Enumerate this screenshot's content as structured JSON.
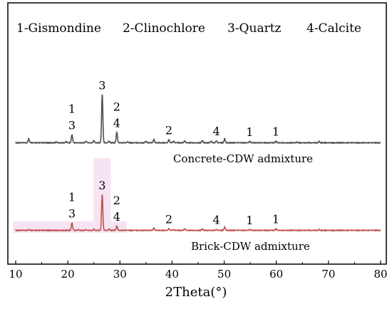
{
  "chart_data": {
    "type": "line",
    "xlabel": "2Theta(°)",
    "xlim": [
      10,
      80
    ],
    "x_ticks": [
      "10",
      "20",
      "30",
      "40",
      "50",
      "60",
      "70",
      "80"
    ],
    "legend_items": [
      "1-Gismondine",
      "2-Clinochlore",
      "3-Quartz",
      "4-Calcite"
    ],
    "series": [
      {
        "name": "Concrete-CDW admixture",
        "color": "#4d4d4d",
        "peaks": [
          {
            "x": 12.5,
            "h": 0.08
          },
          {
            "x": 17.8,
            "h": 0.015
          },
          {
            "x": 19.7,
            "h": 0.02
          },
          {
            "x": 20.8,
            "h": 0.15
          },
          {
            "x": 23.5,
            "h": 0.03
          },
          {
            "x": 25.0,
            "h": 0.04
          },
          {
            "x": 26.6,
            "h": 0.89
          },
          {
            "x": 27.9,
            "h": 0.03
          },
          {
            "x": 29.4,
            "h": 0.19
          },
          {
            "x": 31.5,
            "h": 0.025
          },
          {
            "x": 35.0,
            "h": 0.03
          },
          {
            "x": 36.5,
            "h": 0.06
          },
          {
            "x": 39.4,
            "h": 0.06
          },
          {
            "x": 40.3,
            "h": 0.03
          },
          {
            "x": 42.4,
            "h": 0.035
          },
          {
            "x": 45.8,
            "h": 0.04
          },
          {
            "x": 47.5,
            "h": 0.03
          },
          {
            "x": 48.5,
            "h": 0.04
          },
          {
            "x": 50.1,
            "h": 0.07
          },
          {
            "x": 54.9,
            "h": 0.025
          },
          {
            "x": 59.9,
            "h": 0.03
          },
          {
            "x": 64.0,
            "h": 0.015
          },
          {
            "x": 68.2,
            "h": 0.025
          }
        ]
      },
      {
        "name": "Brick-CDW admixture",
        "color": "#c0504d",
        "peaks": [
          {
            "x": 12.5,
            "h": 0.02
          },
          {
            "x": 20.8,
            "h": 0.14
          },
          {
            "x": 22.0,
            "h": 0.015
          },
          {
            "x": 23.5,
            "h": 0.015
          },
          {
            "x": 25.0,
            "h": 0.02
          },
          {
            "x": 26.6,
            "h": 0.66
          },
          {
            "x": 27.9,
            "h": 0.025
          },
          {
            "x": 29.4,
            "h": 0.08
          },
          {
            "x": 31.5,
            "h": 0.01
          },
          {
            "x": 36.5,
            "h": 0.04
          },
          {
            "x": 39.4,
            "h": 0.035
          },
          {
            "x": 40.3,
            "h": 0.015
          },
          {
            "x": 42.4,
            "h": 0.03
          },
          {
            "x": 45.8,
            "h": 0.025
          },
          {
            "x": 48.5,
            "h": 0.02
          },
          {
            "x": 50.1,
            "h": 0.06
          },
          {
            "x": 54.9,
            "h": 0.015
          },
          {
            "x": 59.9,
            "h": 0.03
          },
          {
            "x": 68.2,
            "h": 0.015
          }
        ]
      }
    ],
    "series_labels": [
      "Concrete-CDW admixture",
      "Brick-CDW admixture"
    ],
    "peak_labels": [
      {
        "series": 0,
        "x": 20.8,
        "text": "1"
      },
      {
        "series": 0,
        "x": 20.8,
        "text": "3"
      },
      {
        "series": 0,
        "x": 26.6,
        "text": "3"
      },
      {
        "series": 0,
        "x": 29.4,
        "text": "2"
      },
      {
        "series": 0,
        "x": 29.4,
        "text": "4"
      },
      {
        "series": 0,
        "x": 39.4,
        "text": "2"
      },
      {
        "series": 0,
        "x": 48.5,
        "text": "4"
      },
      {
        "series": 0,
        "x": 54.9,
        "text": "1"
      },
      {
        "series": 0,
        "x": 59.9,
        "text": "1"
      },
      {
        "series": 1,
        "x": 20.8,
        "text": "1"
      },
      {
        "series": 1,
        "x": 20.8,
        "text": "3"
      },
      {
        "series": 1,
        "x": 26.6,
        "text": "3"
      },
      {
        "series": 1,
        "x": 29.4,
        "text": "2"
      },
      {
        "series": 1,
        "x": 29.4,
        "text": "4"
      },
      {
        "series": 1,
        "x": 39.4,
        "text": "2"
      },
      {
        "series": 1,
        "x": 48.5,
        "text": "4"
      },
      {
        "series": 1,
        "x": 54.9,
        "text": "1"
      },
      {
        "series": 1,
        "x": 59.9,
        "text": "1"
      }
    ]
  }
}
